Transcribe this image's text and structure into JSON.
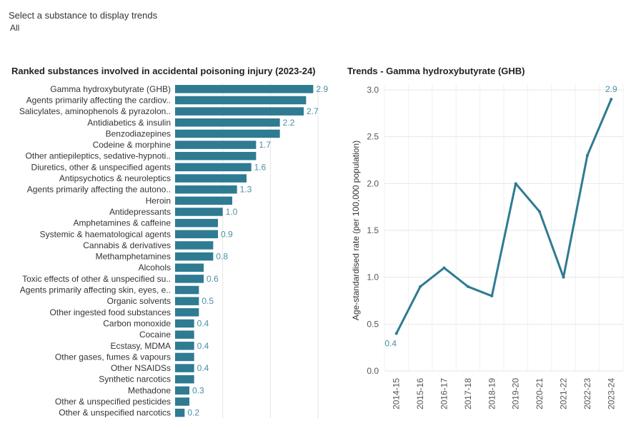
{
  "filter": {
    "label": "Select a substance to display trends",
    "value": "All"
  },
  "colors": {
    "bar": "#2e7b92",
    "line": "#2e7b92",
    "label": "#4a8fa6",
    "grid": "#e6e6e6"
  },
  "chart_data": [
    {
      "type": "bar",
      "orientation": "horizontal",
      "title": "Ranked substances involved in accidental poisoning injury (2023-24)",
      "categories": [
        "Gamma hydroxybutyrate (GHB)",
        "Agents primarily affecting the cardiov..",
        "Salicylates, aminophenols & pyrazolon..",
        "Antidiabetics & insulin",
        "Benzodiazepines",
        "Codeine & morphine",
        "Other antiepileptics, sedative-hypnoti..",
        "Diuretics, other & unspecified agents",
        "Antipsychotics & neuroleptics",
        "Agents primarily affecting the autono..",
        "Heroin",
        "Antidepressants",
        "Amphetamines & caffeine",
        "Systemic & haematological agents",
        "Cannabis & derivatives",
        "Methamphetamines",
        "Alcohols",
        "Toxic effects of other & unspecified su..",
        "Agents primarily affecting skin, eyes, e..",
        "Organic solvents",
        "Other ingested food substances",
        "Carbon monoxide",
        "Cocaine",
        "Ecstasy, MDMA",
        "Other gases, fumes & vapours",
        "Other NSAIDSs",
        "Synthetic narcotics",
        "Methadone",
        "Other & unspecified pesticides",
        "Other & unspecified narcotics"
      ],
      "values": [
        2.9,
        2.75,
        2.7,
        2.2,
        2.2,
        1.7,
        1.7,
        1.6,
        1.5,
        1.3,
        1.2,
        1.0,
        0.9,
        0.9,
        0.8,
        0.8,
        0.6,
        0.6,
        0.5,
        0.5,
        0.5,
        0.4,
        0.4,
        0.4,
        0.4,
        0.4,
        0.4,
        0.3,
        0.3,
        0.2
      ],
      "data_labels": [
        "2.9",
        "",
        "2.7",
        "2.2",
        "",
        "1.7",
        "",
        "1.6",
        "",
        "1.3",
        "",
        "1.0",
        "",
        "0.9",
        "",
        "0.8",
        "",
        "0.6",
        "",
        "0.5",
        "",
        "0.4",
        "",
        "0.4",
        "",
        "0.4",
        "",
        "0.3",
        "",
        "0.2"
      ],
      "xlim": [
        0,
        3.0
      ],
      "grid": true
    },
    {
      "type": "line",
      "title": "Trends - Gamma hydroxybutyrate (GHB)",
      "x": [
        "2014-15",
        "2015-16",
        "2016-17",
        "2017-18",
        "2018-19",
        "2019-20",
        "2020-21",
        "2021-22",
        "2022-23",
        "2023-24"
      ],
      "values": [
        0.4,
        0.9,
        1.1,
        0.9,
        0.8,
        2.0,
        1.7,
        1.0,
        2.3,
        2.9
      ],
      "point_labels": [
        "0.4",
        "",
        "",
        "",
        "",
        "",
        "",
        "",
        "",
        "2.9"
      ],
      "ylabel": "Age-standardised rate (per 100,000 population)",
      "ylim": [
        0,
        3.0
      ],
      "yticks": [
        "0.0",
        "0.5",
        "1.0",
        "1.5",
        "2.0",
        "2.5",
        "3.0"
      ],
      "grid": true
    }
  ]
}
